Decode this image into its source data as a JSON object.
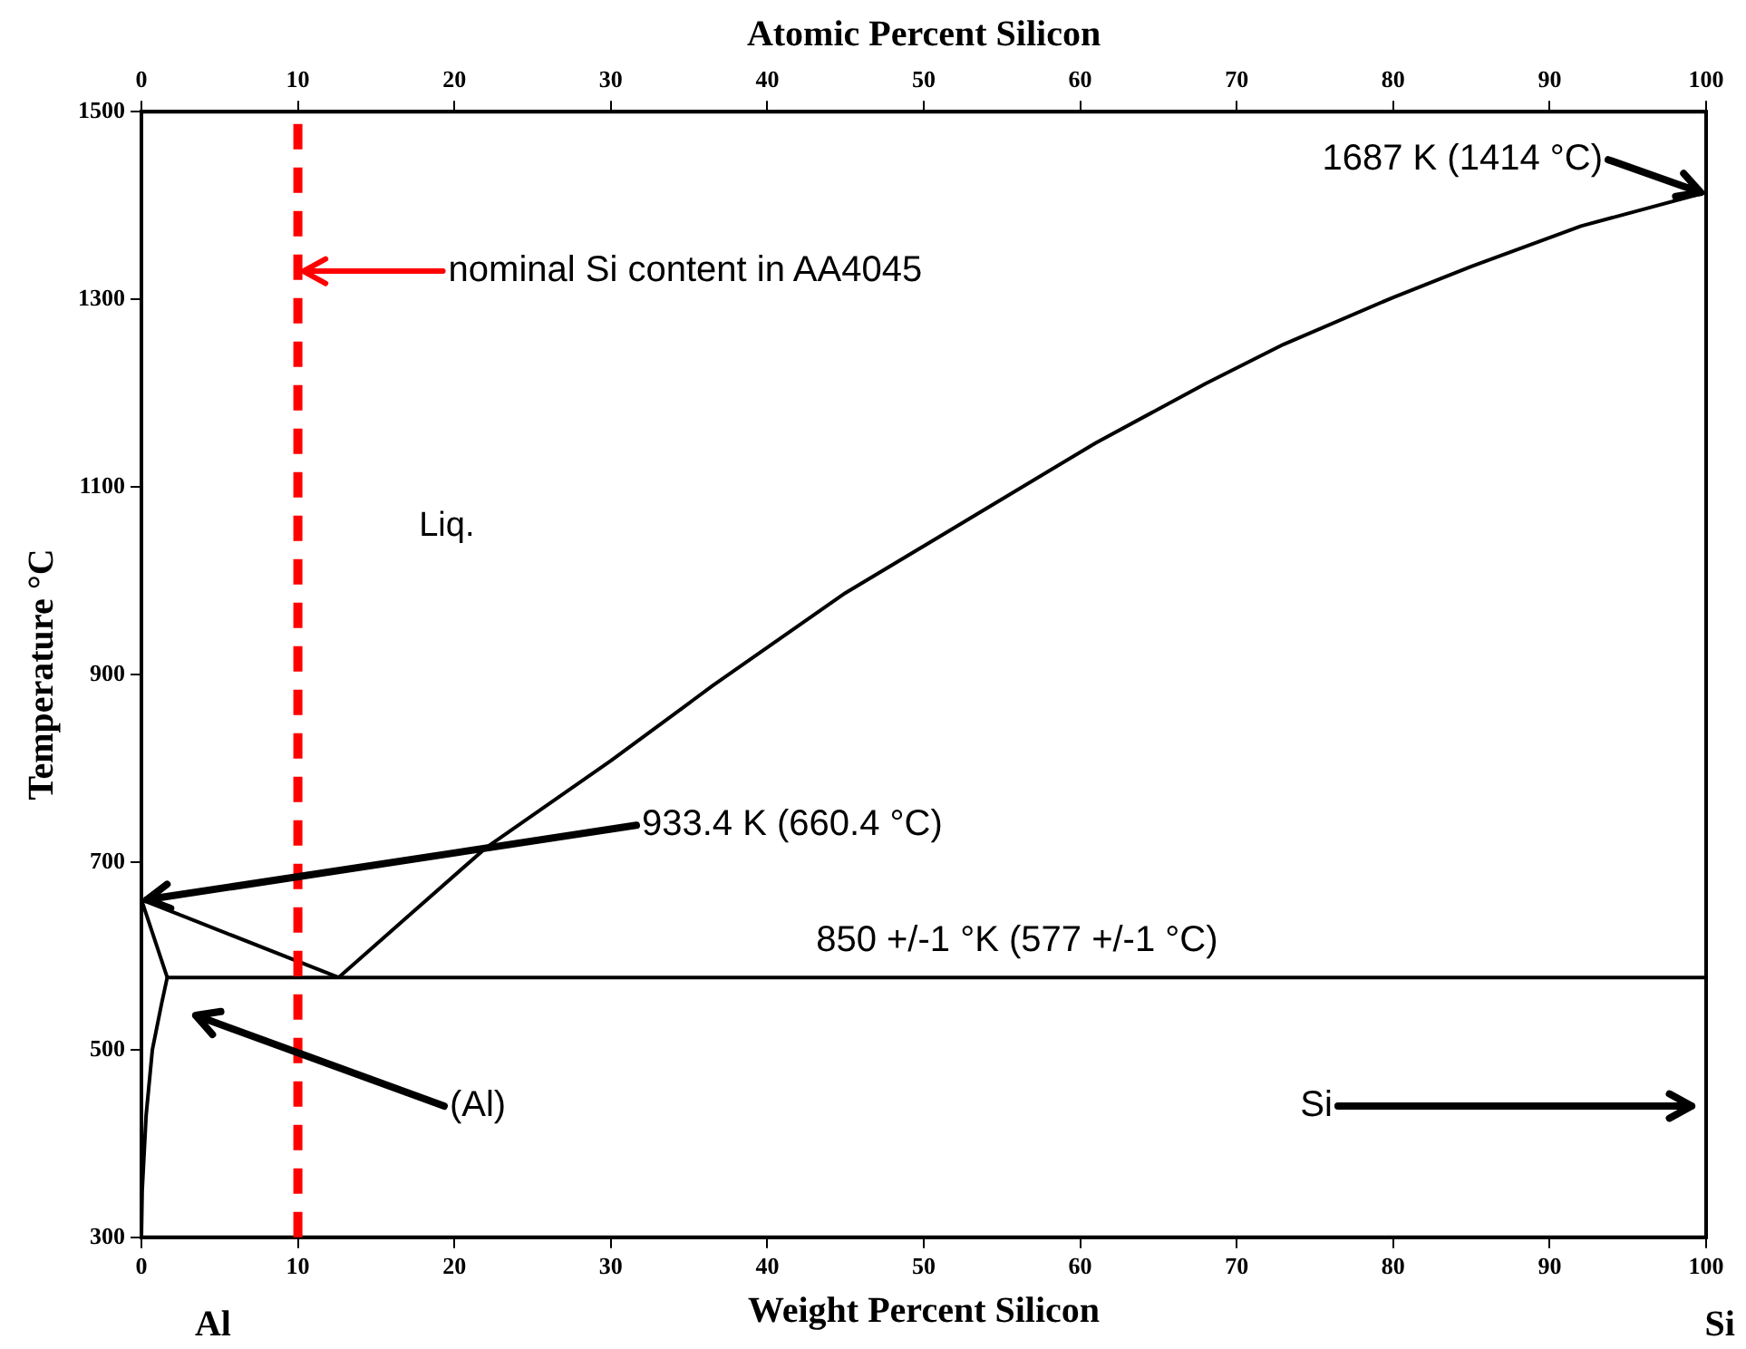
{
  "chart_data": {
    "type": "line",
    "xlabel": "Weight Percent Silicon",
    "x2label": "Atomic Percent Silicon",
    "ylabel": "Temperature °C",
    "xlim": [
      0,
      100
    ],
    "xticks": [
      0,
      10,
      20,
      30,
      40,
      50,
      60,
      70,
      80,
      90,
      100
    ],
    "x2lim": [
      0,
      100
    ],
    "x2ticks": [
      0,
      10,
      20,
      30,
      40,
      50,
      60,
      70,
      80,
      90,
      100
    ],
    "ylim": [
      300,
      1500
    ],
    "yticks": [
      300,
      500,
      700,
      900,
      1100,
      1300,
      1500
    ],
    "grid": false,
    "marker": "none",
    "line_style": "solid",
    "series": [
      {
        "color": "#000000",
        "x": [
          0,
          12.6
        ],
        "values": [
          660,
          577
        ]
      },
      {
        "color": "#000000",
        "x": [
          12.6,
          16,
          22,
          30,
          36.5,
          45,
          53,
          61,
          68,
          73,
          80,
          85,
          92,
          100
        ],
        "values": [
          577,
          627,
          715,
          808,
          888,
          987,
          1067,
          1147,
          1210,
          1252,
          1302,
          1335,
          1378,
          1414
        ]
      },
      {
        "color": "#000000",
        "x": [
          1.65,
          100
        ],
        "values": [
          577,
          577
        ]
      },
      {
        "color": "#000000",
        "x": [
          0,
          1.65
        ],
        "values": [
          660,
          577
        ]
      },
      {
        "color": "#000000",
        "x": [
          1.65,
          1.3,
          0.7,
          0.3,
          0.05,
          0
        ],
        "values": [
          577,
          550,
          500,
          430,
          350,
          300
        ]
      }
    ],
    "ref_lines": [
      {
        "axis": "x",
        "value": 10,
        "color": "#ff0000",
        "line_style": "dashed"
      }
    ],
    "annotations": [
      {
        "text": "nominal Si content in AA4045",
        "x": 10,
        "y": 1330
      },
      {
        "text": "1687 K (1414 °C)",
        "x": 100,
        "y": 1414
      },
      {
        "text": "933.4 K (660.4 °C)",
        "x": 0,
        "y": 660
      },
      {
        "text": "850 +/-1 °K (577 +/-1 °C)",
        "x": 57,
        "y": 577
      },
      "(Al)",
      "Si",
      "Liq.",
      "Al",
      "Si"
    ]
  }
}
